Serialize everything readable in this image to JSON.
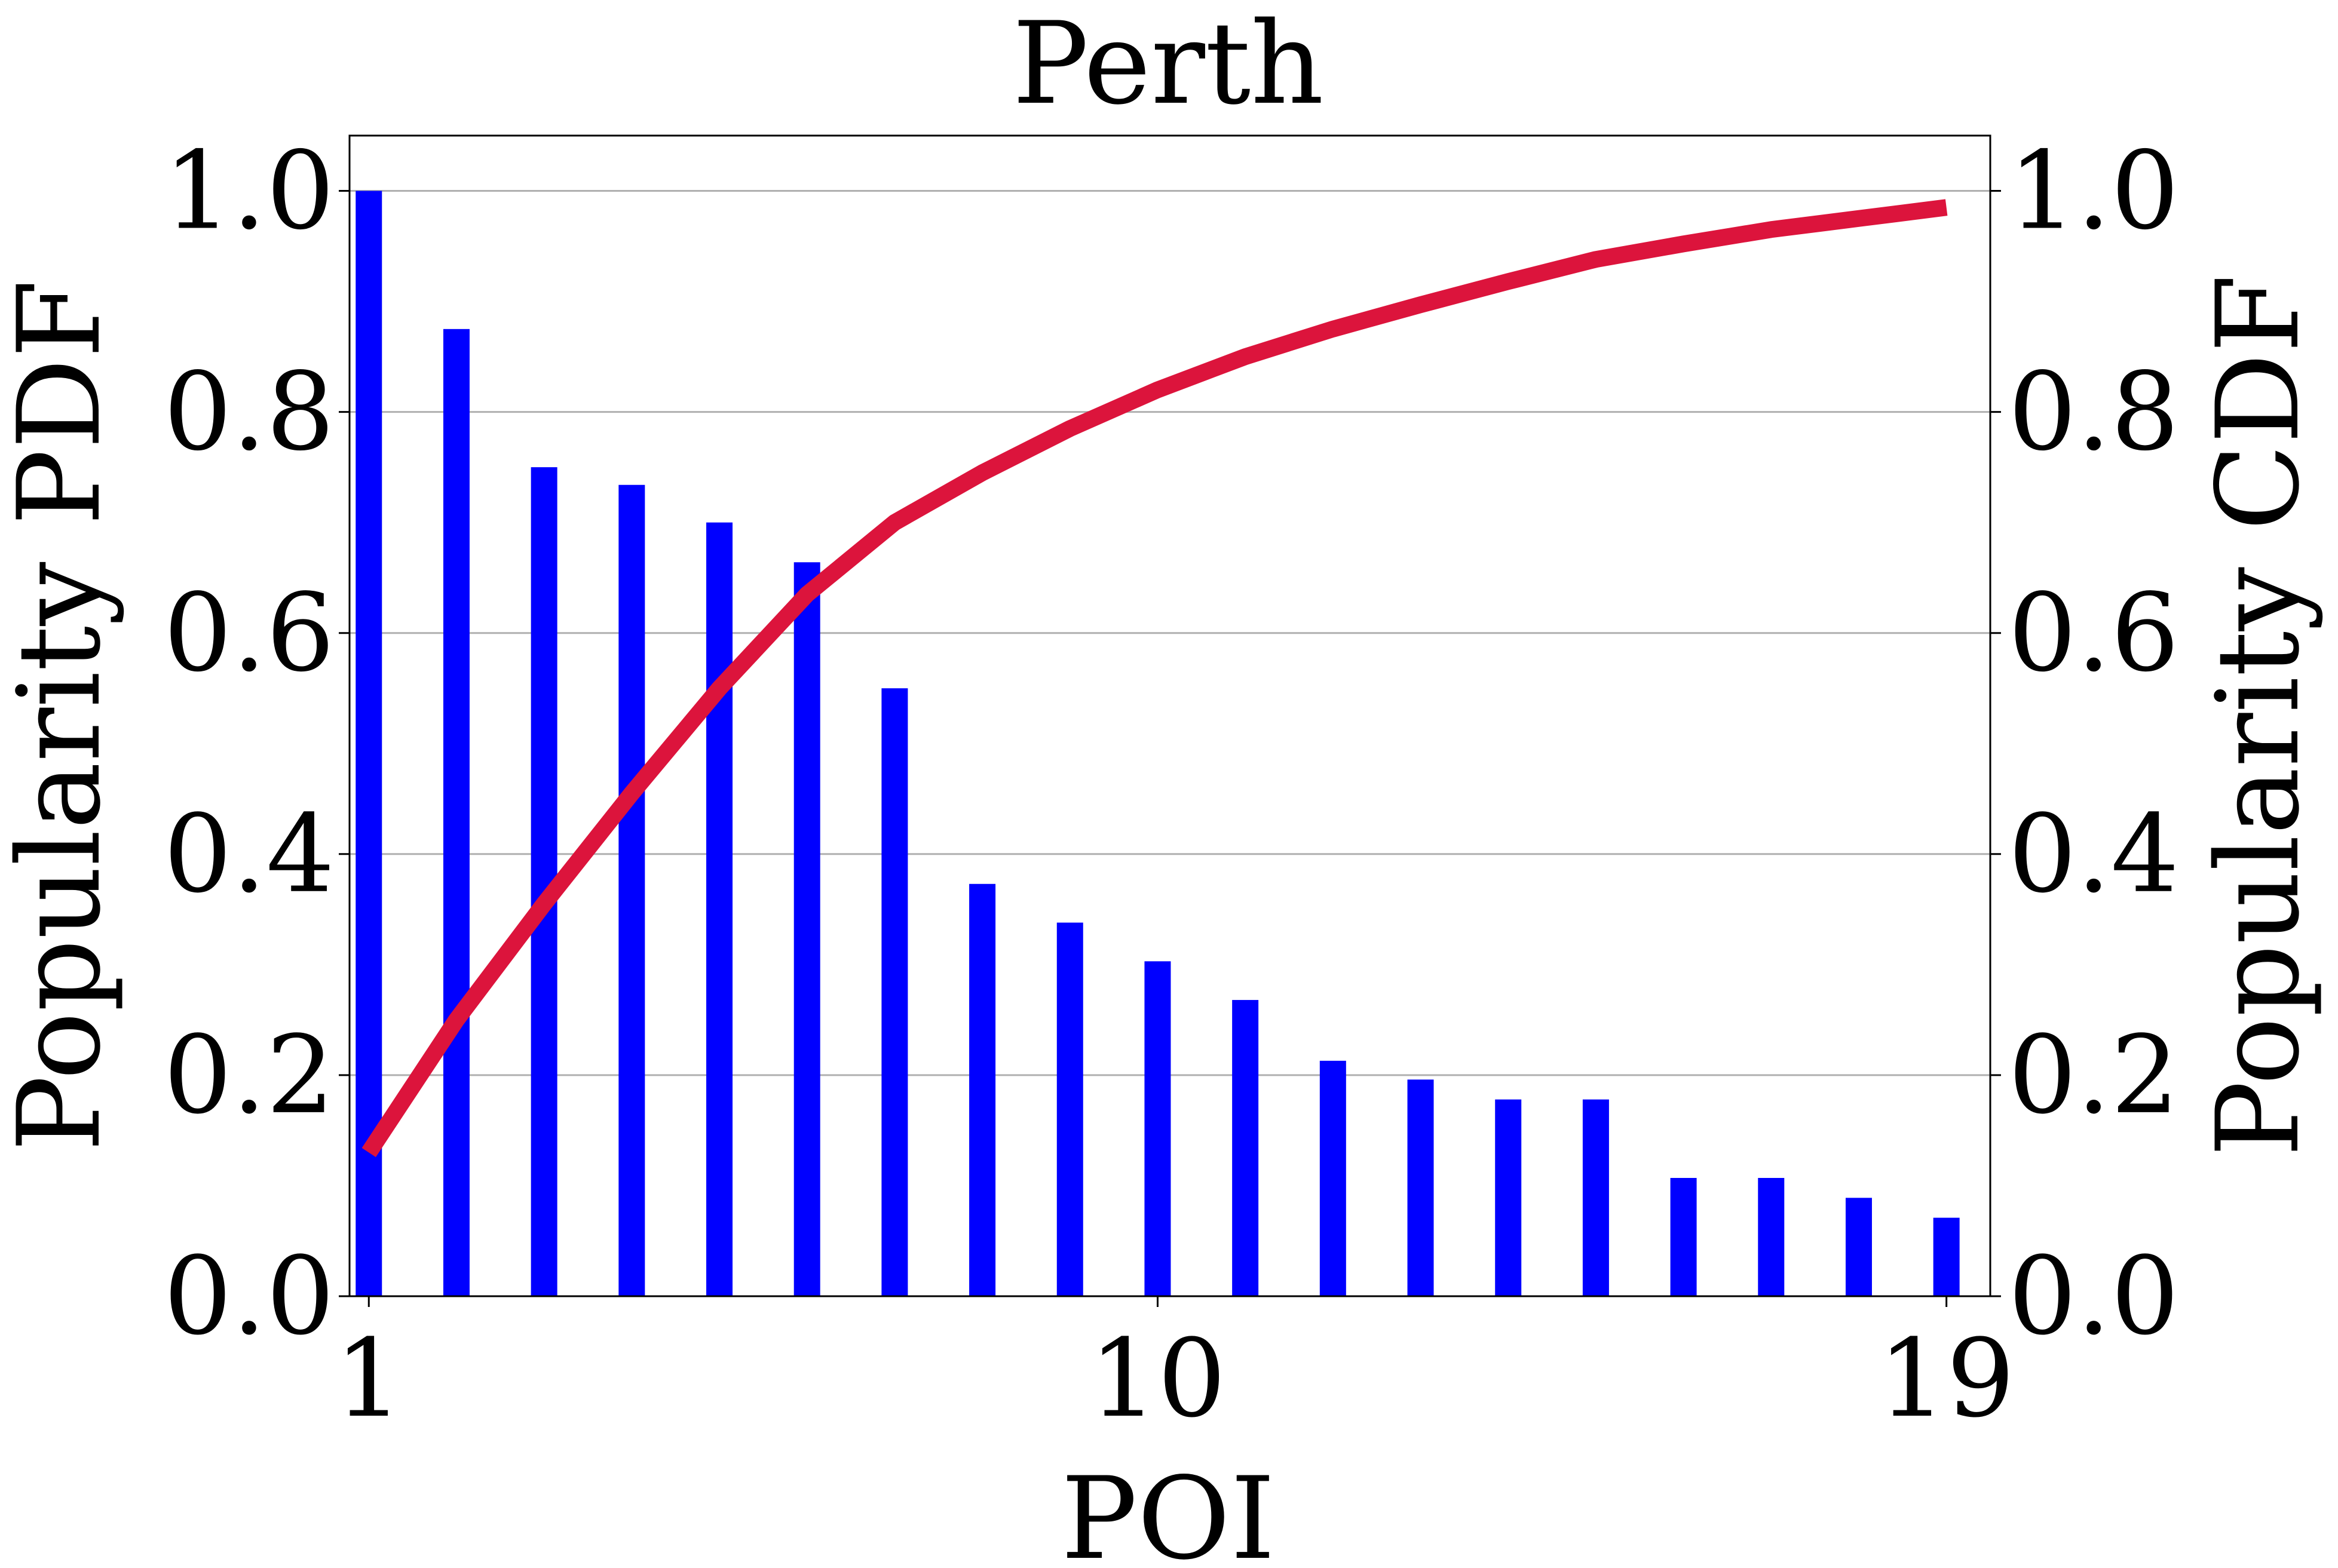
{
  "chart_data": {
    "type": "bar",
    "title": "Perth",
    "xlabel": "POI",
    "ylabel_left": "Popularity PDF",
    "ylabel_right": "Popularity CDF",
    "x": [
      1,
      2,
      3,
      4,
      5,
      6,
      7,
      8,
      9,
      10,
      11,
      12,
      13,
      14,
      15,
      16,
      17,
      18,
      19
    ],
    "x_ticks": [
      1,
      10,
      19
    ],
    "x_tick_labels": [
      "1",
      "10",
      "19"
    ],
    "xlim": [
      0.78,
      19.5
    ],
    "y_ticks": [
      0.0,
      0.2,
      0.4,
      0.6,
      0.8,
      1.0
    ],
    "y_tick_labels": [
      "0.0",
      "0.2",
      "0.4",
      "0.6",
      "0.8",
      "1.0"
    ],
    "ylim_left": [
      0.0,
      1.05
    ],
    "ylim_right": [
      0.0,
      1.05
    ],
    "grid": "horizontal",
    "series": [
      {
        "kind": "bar",
        "axis": "left",
        "color": "#0000ff",
        "values": [
          1.0,
          0.875,
          0.75,
          0.734,
          0.7,
          0.664,
          0.55,
          0.373,
          0.338,
          0.303,
          0.268,
          0.213,
          0.196,
          0.178,
          0.178,
          0.107,
          0.107,
          0.089,
          0.071
        ]
      },
      {
        "kind": "line",
        "axis": "right",
        "color": "#dc143c",
        "values": [
          0.13,
          0.25,
          0.355,
          0.455,
          0.55,
          0.635,
          0.7,
          0.745,
          0.785,
          0.82,
          0.85,
          0.875,
          0.897,
          0.918,
          0.938,
          0.952,
          0.965,
          0.975,
          0.985
        ]
      }
    ]
  }
}
